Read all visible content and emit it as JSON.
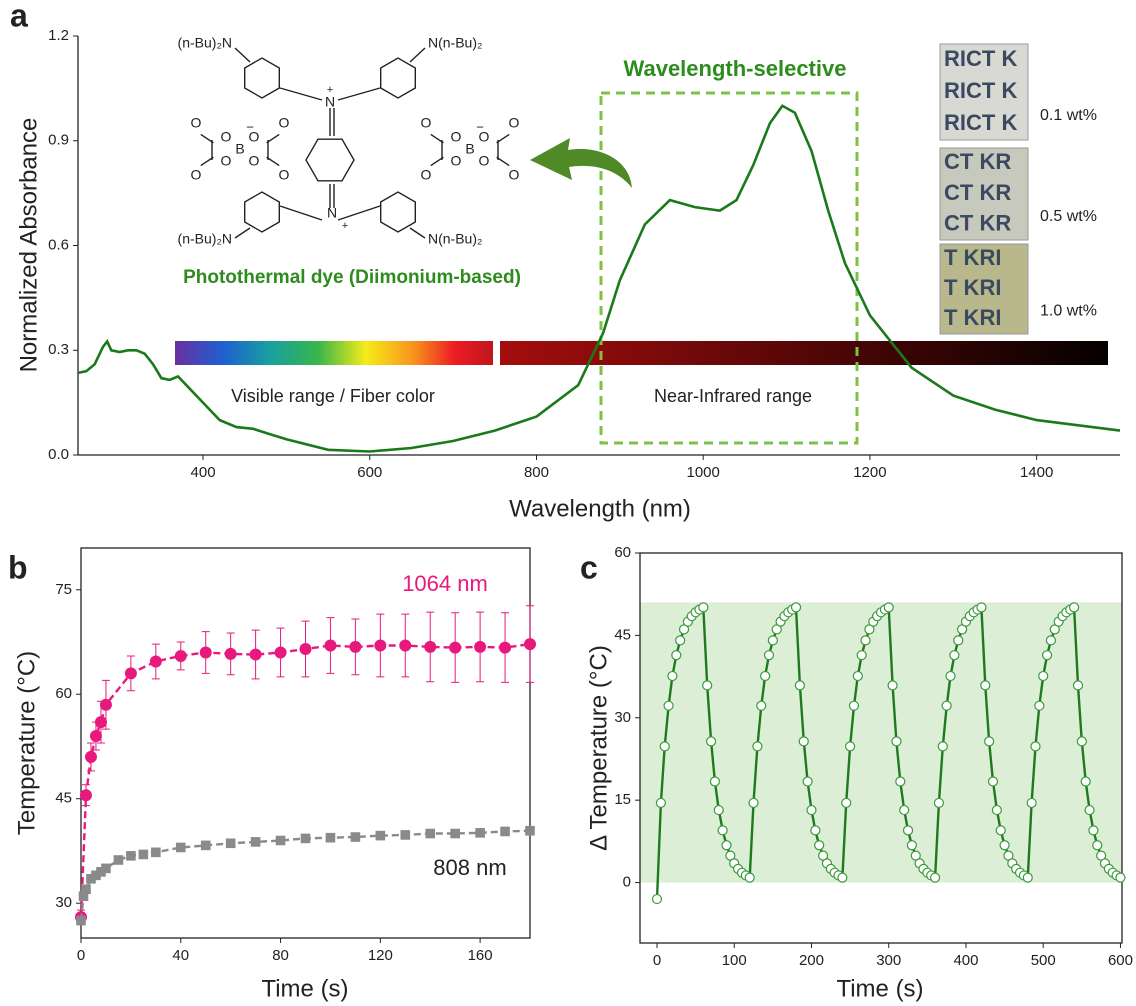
{
  "chart_data": [
    {
      "type": "line",
      "panel_label": "a",
      "xlabel": "Wavelength (nm)",
      "ylabel": "Normalized Absorbance",
      "x": [
        250,
        260,
        270,
        280,
        285,
        290,
        300,
        310,
        320,
        330,
        340,
        350,
        360,
        370,
        380,
        400,
        420,
        440,
        460,
        480,
        500,
        550,
        600,
        650,
        700,
        750,
        800,
        850,
        880,
        900,
        930,
        960,
        990,
        1020,
        1040,
        1060,
        1080,
        1095,
        1110,
        1130,
        1150,
        1170,
        1200,
        1250,
        1300,
        1350,
        1400,
        1450,
        1500
      ],
      "series": [
        {
          "color": "#1a7a1a",
          "values": [
            0.235,
            0.24,
            0.26,
            0.31,
            0.325,
            0.3,
            0.295,
            0.3,
            0.3,
            0.29,
            0.26,
            0.22,
            0.215,
            0.225,
            0.2,
            0.15,
            0.1,
            0.08,
            0.075,
            0.06,
            0.045,
            0.015,
            0.01,
            0.02,
            0.04,
            0.07,
            0.11,
            0.2,
            0.35,
            0.5,
            0.66,
            0.73,
            0.71,
            0.7,
            0.73,
            0.83,
            0.95,
            1.0,
            0.98,
            0.87,
            0.7,
            0.55,
            0.4,
            0.25,
            0.17,
            0.13,
            0.1,
            0.085,
            0.07
          ]
        }
      ],
      "xlim": [
        250,
        1500
      ],
      "xticks": [
        400,
        600,
        800,
        1000,
        1200,
        1400
      ],
      "ylim": [
        0,
        1.2
      ],
      "yticks": [
        {
          "value": 0,
          "label": "0.0"
        },
        0.3,
        0.6,
        0.9,
        1.2
      ],
      "annotations": {
        "selective": "Wavelength-selective",
        "dye": "Photothermal dye (Diimonium-based)",
        "visible": "Visible range / Fiber color",
        "nir": "Near-Infrared range",
        "concentrations": [
          "0.1 wt%",
          "0.5 wt%",
          "1.0 wt%"
        ],
        "swatch_text": [
          "RICT K",
          "CT KR",
          "T KRI"
        ]
      },
      "structure": {
        "amine_left": "(n-Bu)₂N",
        "amine_right": "N(n-Bu)₂",
        "nitrogen": "N",
        "plus": "+",
        "boron": "B",
        "oxygen": "O",
        "minus": "−"
      }
    },
    {
      "type": "line",
      "panel_label": "b",
      "xlabel": "Time (s)",
      "ylabel": "Temperature (°C)",
      "series": [
        {
          "name": "1064 nm",
          "color": "#e8197d",
          "marker": "circle",
          "dashed": true,
          "x": [
            0,
            2,
            4,
            6,
            8,
            10,
            20,
            30,
            40,
            50,
            60,
            70,
            80,
            90,
            100,
            110,
            120,
            130,
            140,
            150,
            160,
            170,
            180
          ],
          "values": [
            28,
            45.5,
            51,
            54,
            56,
            58.5,
            63,
            64.7,
            65.5,
            66,
            65.8,
            65.7,
            66,
            66.5,
            67,
            66.8,
            67,
            67,
            66.8,
            66.7,
            66.8,
            66.7,
            67.2
          ],
          "errors": [
            1,
            1.5,
            2,
            2,
            3,
            3.5,
            2.5,
            2.5,
            2,
            3,
            3,
            3.5,
            3.5,
            4,
            4,
            4,
            4.5,
            4.5,
            5,
            5,
            5,
            5,
            5.5
          ]
        },
        {
          "name": "808 nm",
          "color": "#8a8a8a",
          "marker": "square",
          "dashed": true,
          "x": [
            0,
            1,
            2,
            4,
            6,
            8,
            10,
            15,
            20,
            25,
            30,
            40,
            50,
            60,
            70,
            80,
            90,
            100,
            110,
            120,
            130,
            140,
            150,
            160,
            170,
            180
          ],
          "values": [
            27.5,
            31,
            32,
            33.5,
            34,
            34.5,
            35,
            36.2,
            36.8,
            37,
            37.3,
            38,
            38.3,
            38.6,
            38.8,
            39,
            39.3,
            39.4,
            39.5,
            39.7,
            39.8,
            40,
            40,
            40.1,
            40.3,
            40.4
          ]
        }
      ],
      "xlim": [
        0,
        180
      ],
      "xticks": [
        0,
        40,
        80,
        120,
        160
      ],
      "ylim": [
        25,
        81
      ],
      "yticks": [
        30,
        45,
        60,
        75
      ]
    },
    {
      "type": "line",
      "panel_label": "c",
      "xlabel": "Time (s)",
      "ylabel": "Δ Temperature (°C)",
      "shaded_range": [
        0,
        51
      ],
      "shade_color": "#dcefd6",
      "x": [
        0,
        5,
        10,
        15,
        20,
        25,
        30,
        35,
        40,
        45,
        50,
        55,
        60,
        65,
        70,
        75,
        80,
        85,
        90,
        95,
        100,
        105,
        110,
        115,
        120,
        125,
        130,
        135,
        140,
        145,
        150,
        155,
        160,
        165,
        170,
        175,
        180,
        185,
        190,
        195,
        200,
        205,
        210,
        215,
        220,
        225,
        230,
        235,
        240,
        245,
        250,
        255,
        260,
        265,
        270,
        275,
        280,
        285,
        290,
        295,
        300,
        305,
        310,
        315,
        320,
        325,
        330,
        335,
        340,
        345,
        350,
        355,
        360,
        365,
        370,
        375,
        380,
        385,
        390,
        395,
        400,
        405,
        410,
        415,
        420,
        425,
        430,
        435,
        440,
        445,
        450,
        455,
        460,
        465,
        470,
        475,
        480,
        485,
        490,
        495,
        500,
        505,
        510,
        515,
        520,
        525,
        530,
        535,
        540,
        545,
        550,
        555,
        560,
        565,
        570,
        575,
        580,
        585,
        590,
        595,
        600
      ],
      "series": [
        {
          "color": "#1f7a1f",
          "marker": "circle",
          "values": [
            -3,
            14.5,
            24.8,
            32.2,
            37.6,
            41.4,
            44.1,
            46.1,
            47.5,
            48.5,
            49.2,
            49.7,
            50.1,
            35.9,
            25.7,
            18.4,
            13.2,
            9.5,
            6.8,
            4.9,
            3.5,
            2.5,
            1.8,
            1.3,
            0.9,
            14.5,
            24.8,
            32.2,
            37.6,
            41.4,
            44.1,
            46.1,
            47.5,
            48.5,
            49.2,
            49.7,
            50.1,
            35.9,
            25.7,
            18.4,
            13.2,
            9.5,
            6.8,
            4.9,
            3.5,
            2.5,
            1.8,
            1.3,
            0.9,
            14.5,
            24.8,
            32.2,
            37.6,
            41.4,
            44.1,
            46.1,
            47.5,
            48.5,
            49.2,
            49.7,
            50.1,
            35.9,
            25.7,
            18.4,
            13.2,
            9.5,
            6.8,
            4.9,
            3.5,
            2.5,
            1.8,
            1.3,
            0.9,
            14.5,
            24.8,
            32.2,
            37.6,
            41.4,
            44.1,
            46.1,
            47.5,
            48.5,
            49.2,
            49.7,
            50.1,
            35.9,
            25.7,
            18.4,
            13.2,
            9.5,
            6.8,
            4.9,
            3.5,
            2.5,
            1.8,
            1.3,
            0.9,
            14.5,
            24.8,
            32.2,
            37.6,
            41.4,
            44.1,
            46.1,
            47.5,
            48.5,
            49.2,
            49.7,
            50.1,
            35.9,
            25.7,
            18.4,
            13.2,
            9.5,
            6.8,
            4.9,
            3.5,
            2.5,
            1.8,
            1.3,
            0.9
          ]
        }
      ],
      "xlim": [
        -22,
        602
      ],
      "xticks": [
        0,
        100,
        200,
        300,
        400,
        500,
        600
      ],
      "ylim": [
        -11,
        60
      ],
      "yticks": [
        0,
        15,
        30,
        45,
        60
      ]
    }
  ]
}
